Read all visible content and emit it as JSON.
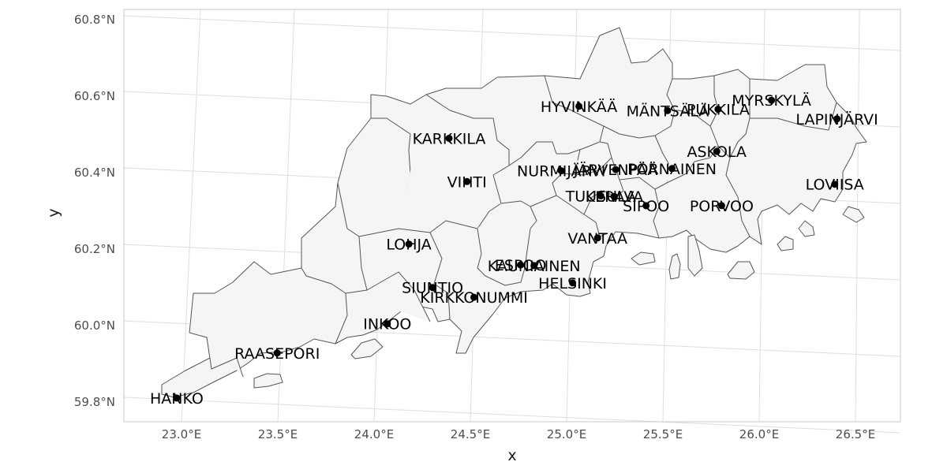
{
  "axes": {
    "x_title": "x",
    "y_title": "y",
    "x_ticks": [
      "23.0°E",
      "23.5°E",
      "24.0°E",
      "24.5°E",
      "25.0°E",
      "25.5°E",
      "26.0°E",
      "26.5°E"
    ],
    "y_ticks": [
      "59.8°N",
      "60.0°N",
      "60.2°N",
      "60.4°N",
      "60.6°N",
      "60.8°N"
    ]
  },
  "colors": {
    "land_fill": "#f5f5f5",
    "border": "#555555",
    "grid": "#dedede",
    "point": "#000000"
  },
  "chart_data": {
    "type": "scatter",
    "title": "",
    "xlabel": "x",
    "ylabel": "y",
    "xlim": [
      22.9,
      26.6
    ],
    "ylim": [
      59.75,
      60.83
    ],
    "grid": true,
    "legend": "none",
    "points": [
      {
        "name": "HANKO",
        "lon": 22.97,
        "lat": 59.82
      },
      {
        "name": "RAASEPORI",
        "lon": 23.46,
        "lat": 59.95
      },
      {
        "name": "INKOO",
        "lon": 24.01,
        "lat": 60.04
      },
      {
        "name": "SIUNTIO",
        "lon": 24.22,
        "lat": 60.14
      },
      {
        "name": "KIRKKONUMMI",
        "lon": 24.44,
        "lat": 60.12
      },
      {
        "name": "LOHJA",
        "lon": 24.07,
        "lat": 60.25
      },
      {
        "name": "VIHTI",
        "lon": 24.33,
        "lat": 60.42
      },
      {
        "name": "KARKKILA",
        "lon": 24.21,
        "lat": 60.53
      },
      {
        "name": "ESPOO",
        "lon": 24.66,
        "lat": 60.21
      },
      {
        "name": "KAUNIAINEN",
        "lon": 24.73,
        "lat": 60.21
      },
      {
        "name": "HELSINKI",
        "lon": 24.94,
        "lat": 60.17
      },
      {
        "name": "VANTAA",
        "lon": 25.04,
        "lat": 60.29
      },
      {
        "name": "NURMIJÄRVI",
        "lon": 24.81,
        "lat": 60.46
      },
      {
        "name": "HYVINKÄÄ",
        "lon": 24.86,
        "lat": 60.63
      },
      {
        "name": "TUUSULA",
        "lon": 25.03,
        "lat": 60.4
      },
      {
        "name": "JÄRVENPÄÄ",
        "lon": 25.09,
        "lat": 60.47
      },
      {
        "name": "KERAVA",
        "lon": 25.1,
        "lat": 60.4
      },
      {
        "name": "MÄNTSÄLÄ",
        "lon": 25.32,
        "lat": 60.63
      },
      {
        "name": "PORNAINEN",
        "lon": 25.38,
        "lat": 60.48
      },
      {
        "name": "SIPOO",
        "lon": 25.27,
        "lat": 60.38
      },
      {
        "name": "PUKKILA",
        "lon": 25.58,
        "lat": 60.64
      },
      {
        "name": "ASKOLA",
        "lon": 25.6,
        "lat": 60.53
      },
      {
        "name": "MYRSKYLÄ",
        "lon": 25.85,
        "lat": 60.67
      },
      {
        "name": "LAPINJÄRVI",
        "lon": 26.2,
        "lat": 60.63
      },
      {
        "name": "PORVOO",
        "lon": 25.66,
        "lat": 60.39
      },
      {
        "name": "LOVIISA",
        "lon": 26.23,
        "lat": 60.46
      }
    ]
  }
}
